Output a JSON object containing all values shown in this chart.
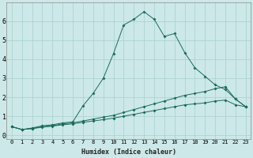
{
  "xlabel": "Humidex (Indice chaleur)",
  "ylabel": "",
  "xlim": [
    -0.5,
    23.5
  ],
  "ylim": [
    -0.2,
    7.0
  ],
  "bg_color": "#cce8e8",
  "grid_color": "#aacfcf",
  "line_color": "#1a6b5a",
  "xticks": [
    0,
    1,
    2,
    3,
    4,
    5,
    6,
    7,
    8,
    9,
    10,
    11,
    12,
    13,
    14,
    15,
    16,
    17,
    18,
    19,
    20,
    21,
    22,
    23
  ],
  "yticks": [
    0,
    1,
    2,
    3,
    4,
    5,
    6
  ],
  "line1_x": [
    0,
    1,
    2,
    3,
    4,
    5,
    6,
    7,
    8,
    9,
    10,
    11,
    12,
    13,
    14,
    15,
    16,
    17,
    18,
    19,
    20,
    21,
    22,
    23
  ],
  "line1_y": [
    0.45,
    0.3,
    0.38,
    0.5,
    0.55,
    0.65,
    0.7,
    1.55,
    2.2,
    3.0,
    4.3,
    5.8,
    6.1,
    6.5,
    6.1,
    5.2,
    5.35,
    4.35,
    3.55,
    3.1,
    2.65,
    2.4,
    1.9,
    1.5
  ],
  "line2_x": [
    0,
    1,
    2,
    3,
    4,
    5,
    6,
    7,
    8,
    9,
    10,
    11,
    12,
    13,
    14,
    15,
    16,
    17,
    18,
    19,
    20,
    21,
    22,
    23
  ],
  "line2_y": [
    0.45,
    0.3,
    0.35,
    0.45,
    0.5,
    0.6,
    0.65,
    0.75,
    0.85,
    0.95,
    1.05,
    1.2,
    1.35,
    1.5,
    1.65,
    1.8,
    1.95,
    2.1,
    2.2,
    2.3,
    2.45,
    2.55,
    1.9,
    1.5
  ],
  "line3_x": [
    0,
    1,
    2,
    3,
    4,
    5,
    6,
    7,
    8,
    9,
    10,
    11,
    12,
    13,
    14,
    15,
    16,
    17,
    18,
    19,
    20,
    21,
    22,
    23
  ],
  "line3_y": [
    0.45,
    0.3,
    0.35,
    0.42,
    0.48,
    0.55,
    0.6,
    0.68,
    0.75,
    0.82,
    0.9,
    1.0,
    1.1,
    1.2,
    1.3,
    1.4,
    1.5,
    1.6,
    1.65,
    1.7,
    1.8,
    1.85,
    1.6,
    1.5
  ],
  "xlabel_fontsize": 6,
  "tick_fontsize": 5,
  "ytick_fontsize": 6
}
